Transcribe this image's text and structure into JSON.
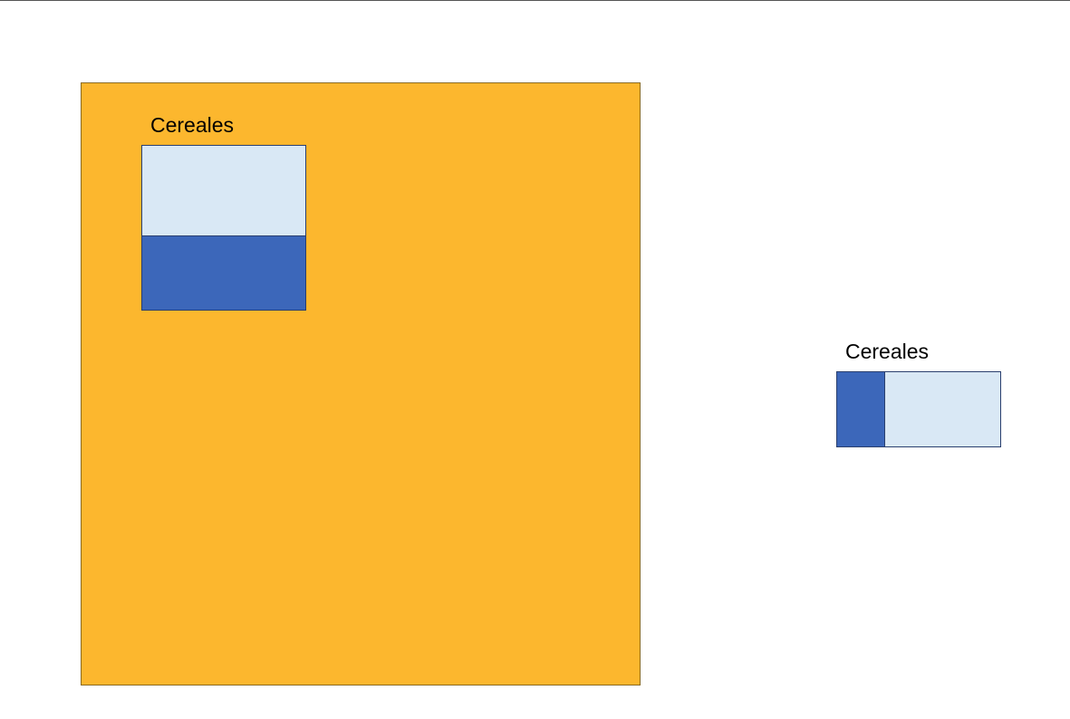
{
  "colors": {
    "container": "#FCB72E",
    "light": "#D9E8F5",
    "dark": "#3C67BA"
  },
  "left_group": {
    "label": "Cereales",
    "dark_fraction": 0.45
  },
  "right_group": {
    "label": "Cereales",
    "dark_fraction": 0.29
  }
}
